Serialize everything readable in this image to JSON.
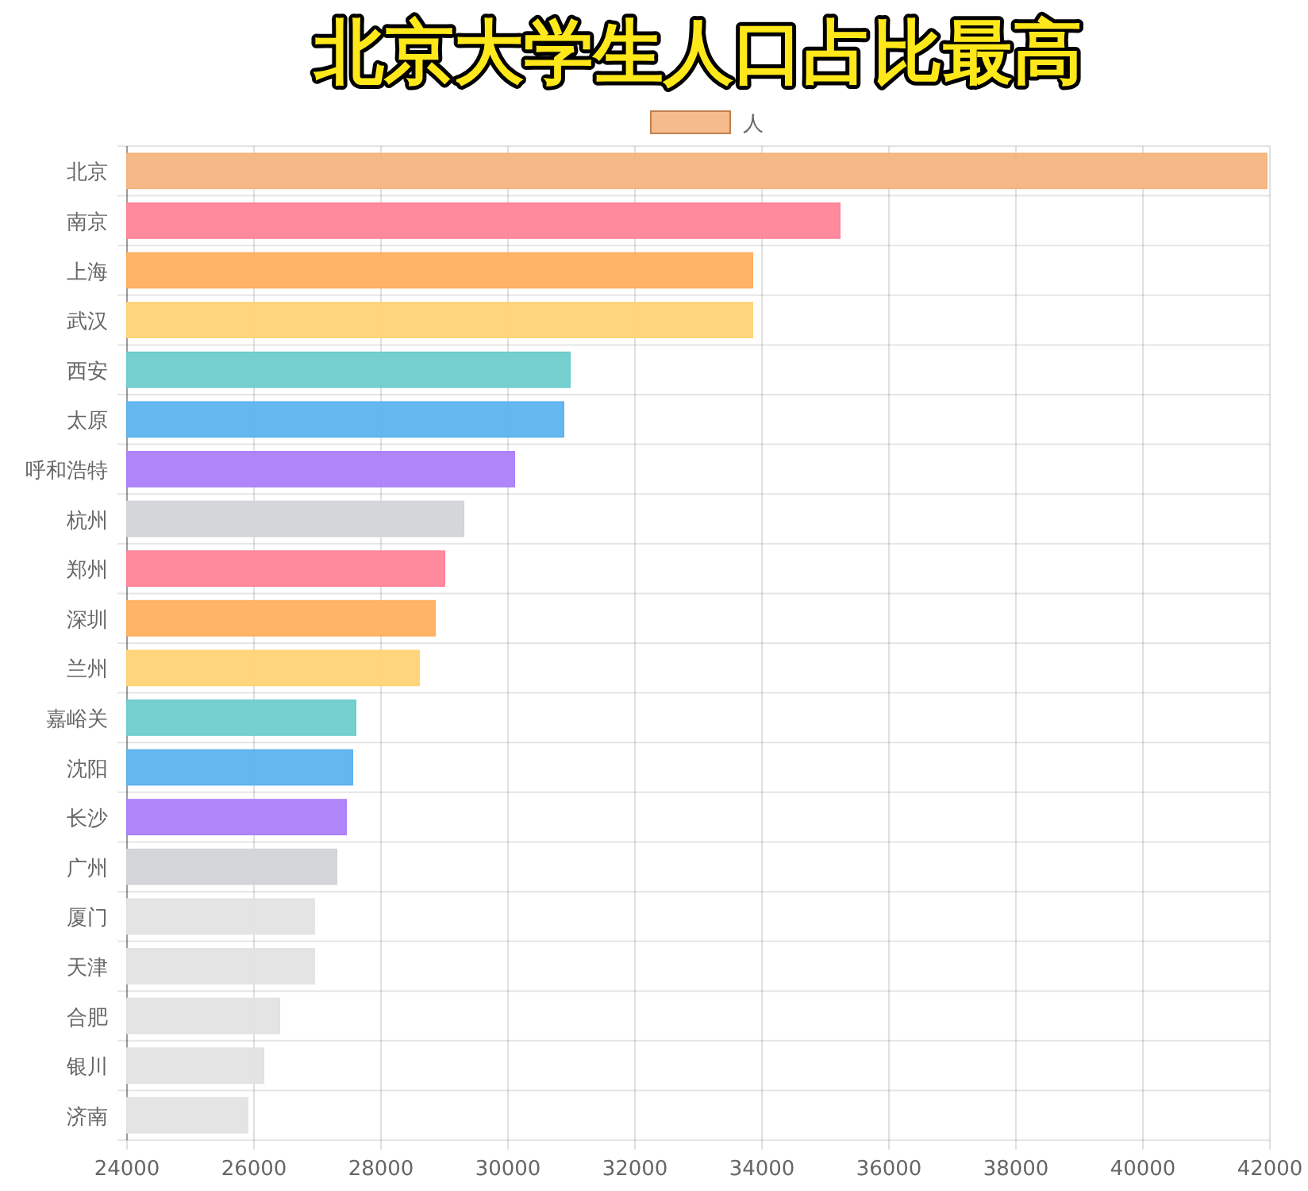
{
  "chart_data": {
    "type": "bar",
    "orientation": "horizontal",
    "title": "北京大学生人口占比最高",
    "categories": [
      "北京",
      "南京",
      "上海",
      "武汉",
      "西安",
      "太原",
      "呼和浩特",
      "杭州",
      "郑州",
      "深圳",
      "兰州",
      "嘉峪关",
      "沈阳",
      "长沙",
      "广州",
      "厦门",
      "天津",
      "合肥",
      "银川",
      "济南"
    ],
    "series": [
      {
        "name": "人",
        "color": "#f4b47f",
        "values": [
          41950,
          35225,
          33850,
          33850,
          30975,
          30875,
          30100,
          29300,
          29000,
          28850,
          28600,
          27600,
          27550,
          27450,
          27300,
          26950,
          26950,
          26400,
          26150,
          25900
        ],
        "colors": [
          "#f4b47f",
          "#ff8499",
          "#ffb060",
          "#ffd476",
          "#6fcdcd",
          "#5db3ef",
          "#ad80fb",
          "#d3d4d8",
          "#ff8499",
          "#ffb060",
          "#ffd476",
          "#6fcdcd",
          "#5db3ef",
          "#ad80fb",
          "#d3d4d8",
          "#e3e3e3",
          "#e3e3e3",
          "#e3e3e3",
          "#e3e3e3",
          "#e3e3e3"
        ]
      }
    ],
    "xlim": [
      24000,
      42000
    ],
    "xticks": [
      24000,
      26000,
      28000,
      30000,
      32000,
      34000,
      36000,
      38000,
      40000,
      42000
    ],
    "grid": true,
    "legend": "top"
  }
}
